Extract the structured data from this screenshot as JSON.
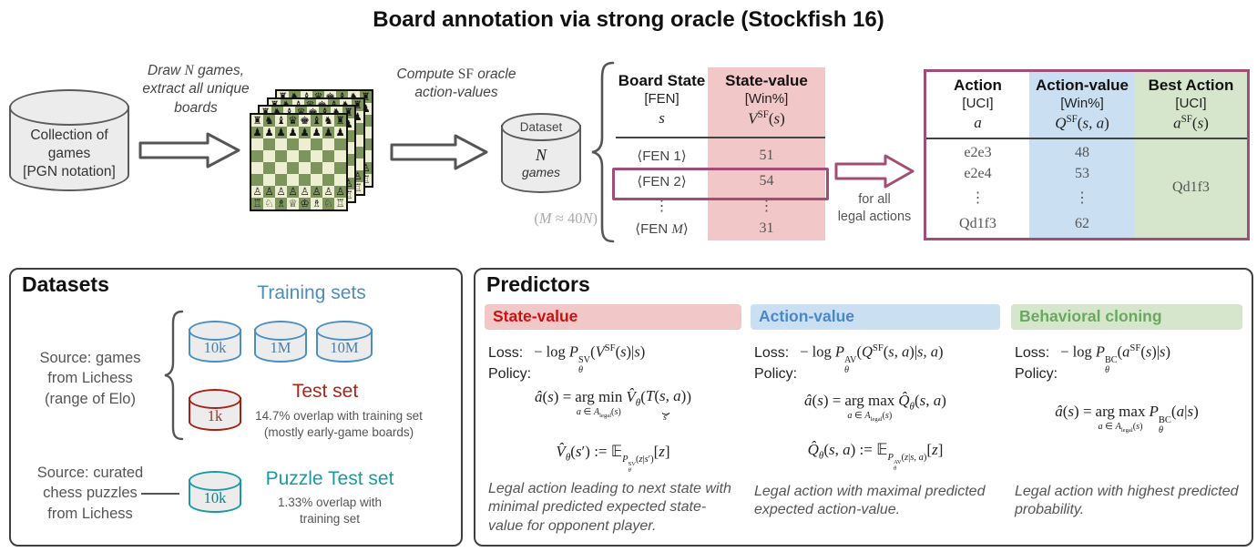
{
  "title": "Board annotation via strong oracle (Stockfish 16)",
  "colors": {
    "purple": "#a34d76",
    "pink_bg": "#f2c7c7",
    "blue_bg": "#cbdff2",
    "green_bg": "#d5e6cc",
    "red_text": "#cc1111",
    "blue_text": "#4a86c8",
    "green_text": "#6aa85f",
    "training_blue": "#4a8ec2",
    "test_red": "#b02418",
    "puzzle_teal": "#1b9aa5"
  },
  "flow": {
    "source_db": [
      "Collection of",
      "games",
      "[PGN notation]"
    ],
    "draw_label_html": "Draw <span class=\"mi\">N</span> games,<br>extract all unique<br>boards",
    "compute_label_html": "Compute <span class=\"mrm\">SF</span> oracle<br>action-values",
    "dataset_db": {
      "top": "Dataset",
      "n_html": "<span class=\"mi\">N</span>",
      "games": "games"
    },
    "m_note_html": "(<span class=\"mi\">M</span> ≈ 40<span class=\"mi\">N</span>)",
    "for_all_label": [
      "for all",
      "legal actions"
    ]
  },
  "board": {
    "rows": [
      "♜♞♝♛♚♝♞♜",
      "♟♟♟♟♟♟♟♟",
      "........",
      "........",
      "........",
      "........",
      "♙♙♙♙♙♙♙♙",
      "♖♘♗♕♔♗♘♖"
    ]
  },
  "state_table": {
    "col1": {
      "title": "Board State",
      "unit": "[FEN]",
      "symbol_html": "<span class=\"mi\">s</span>"
    },
    "col2": {
      "title": "State-value",
      "unit": "[Win%]",
      "symbol_html": "<span class=\"mi\">V</span><sup class=\"mrm\">SF</sup>(<span class=\"mi\">s</span>)"
    },
    "rows": [
      [
        "⟨FEN 1⟩",
        "51"
      ],
      [
        "⟨FEN 2⟩",
        "54"
      ],
      [
        "⋮",
        "⋮"
      ],
      [
        "⟨FEN <span class=\"mi\">M</span>⟩",
        "31"
      ]
    ]
  },
  "action_table": {
    "col1": {
      "title": "Action",
      "unit": "[UCI]",
      "symbol_html": "<span class=\"mi\">a</span>"
    },
    "col2": {
      "title": "Action-value",
      "unit": "[Win%]",
      "symbol_html": "<span class=\"mi\">Q</span><sup class=\"mrm\">SF</sup>(<span class=\"mi\">s</span>, <span class=\"mi\">a</span>)"
    },
    "col3": {
      "title": "Best Action",
      "unit": "[UCI]",
      "symbol_html": "<span class=\"mi\">a</span><sup class=\"mrm\">SF</sup>(<span class=\"mi\">s</span>)"
    },
    "rows": [
      [
        "e2e3",
        "48"
      ],
      [
        "e2e4",
        "53"
      ],
      [
        "⋮",
        "⋮"
      ],
      [
        "Qd1f3",
        "62"
      ]
    ],
    "best_action": "Qd1f3"
  },
  "datasets": {
    "title": "Datasets",
    "training_label": "Training sets",
    "training_cylinders": [
      "10k",
      "1M",
      "10M"
    ],
    "source_games": [
      "Source: games",
      "from Lichess",
      "(range of Elo)"
    ],
    "test_label": "Test set",
    "test_cylinder": "1k",
    "test_notes": [
      "14.7% overlap with training set",
      "(mostly early-game boards)"
    ],
    "source_puzzles": [
      "Source: curated",
      "chess puzzles",
      "from Lichess"
    ],
    "puzzle_label": "Puzzle Test set",
    "puzzle_cylinder": "10k",
    "puzzle_notes": [
      "1.33% overlap with",
      "training set"
    ]
  },
  "predictors": {
    "title": "Predictors",
    "loss_label": "Loss:",
    "policy_label": "Policy:",
    "columns": [
      {
        "name": "State-value",
        "loss_html": "<span class=\"mrm\">− log</span>&nbsp;<span class=\"mi\">P</span><span class=\"ss\"><span class=\"sst\">SV</span><span class=\"ssb\">θ</span></span>(<span class=\"mi\">V</span><sup class=\"mrm\">SF</sup>(<span class=\"mi\">s</span>)|<span class=\"mi\">s</span>)",
        "policy_lines_html": [
          "<span class=\"mi\">â</span>(<span class=\"mi\">s</span>) <span class=\"mrm\">=</span><span class=\"amstack\"><span class=\"amtop\">arg min</span><span class=\"ambot\"><span class=\"mi\">a</span> ∈ <span class=\"mi\">A</span><sub class=\"mrm\">legal</sub>(<span class=\"mi\">s</span>)</span></span><span class=\"mi\">V̂</span><sub class=\"ssb\">θ</sub>(<span class=\"ubstack\"><span><span class=\"mi\">T</span>(<span class=\"mi\">s</span>, <span class=\"mi\">a</span>)</span><span class=\"ubrace\">⏟</span><span class=\"ublab\"><span class=\"mi\">s</span>′</span></span>)",
          "<span class=\"mi\">V̂</span><sub class=\"ssb\">θ</sub>(<span class=\"mi\">s</span>′) <span class=\"mrm\">:=</span> <span class=\"bb\">𝔼</span><sub class=\"esub\"><span class=\"mi\">P</span><span class=\"ss\"><span class=\"sst\">SV</span><span class=\"ssb\">θ</span></span>(<span class=\"mi\">z</span>|<span class=\"mi\">s</span>′)</sub>[<span class=\"mi\">z</span>]"
        ],
        "description": "Legal action leading to next state with minimal predicted expected state-value for opponent player."
      },
      {
        "name": "Action-value",
        "loss_html": "<span class=\"mrm\">− log</span>&nbsp;<span class=\"mi\">P</span><span class=\"ss\"><span class=\"sst\">AV</span><span class=\"ssb\">θ</span></span>(<span class=\"mi\">Q</span><sup class=\"mrm\">SF</sup>(<span class=\"mi\">s</span>, <span class=\"mi\">a</span>)|<span class=\"mi\">s</span>, <span class=\"mi\">a</span>)",
        "policy_lines_html": [
          "<span class=\"mi\">â</span>(<span class=\"mi\">s</span>) <span class=\"mrm\">=</span><span class=\"amstack\"><span class=\"amtop\">arg max</span><span class=\"ambot\"><span class=\"mi\">a</span> ∈ <span class=\"mi\">A</span><sub class=\"mrm\">legal</sub>(<span class=\"mi\">s</span>)</span></span><span class=\"mi\">Q̂</span><sub class=\"ssb\">θ</sub>(<span class=\"mi\">s</span>, <span class=\"mi\">a</span>)",
          "<span class=\"mi\">Q̂</span><sub class=\"ssb\">θ</sub>(<span class=\"mi\">s</span>, <span class=\"mi\">a</span>) <span class=\"mrm\">:=</span> <span class=\"bb\">𝔼</span><sub class=\"esub\"><span class=\"mi\">P</span><span class=\"ss\"><span class=\"sst\">AV</span><span class=\"ssb\">θ</span></span>(<span class=\"mi\">z</span>|<span class=\"mi\">s</span>, <span class=\"mi\">a</span>)</sub>[<span class=\"mi\">z</span>]"
        ],
        "description": "Legal action with maximal predicted expected action-value."
      },
      {
        "name": "Behavioral cloning",
        "loss_html": "<span class=\"mrm\">− log</span>&nbsp;<span class=\"mi\">P</span><span class=\"ss\"><span class=\"sst\">BC</span><span class=\"ssb\">θ</span></span>(<span class=\"mi\">a</span><sup class=\"mrm\">SF</sup>(<span class=\"mi\">s</span>)|<span class=\"mi\">s</span>)",
        "policy_lines_html": [
          "<span class=\"mi\">â</span>(<span class=\"mi\">s</span>) <span class=\"mrm\">=</span><span class=\"amstack\"><span class=\"amtop\">arg max</span><span class=\"ambot\"><span class=\"mi\">a</span> ∈ <span class=\"mi\">A</span><sub class=\"mrm\">legal</sub>(<span class=\"mi\">s</span>)</span></span><span class=\"mi\">P</span><span class=\"ss\"><span class=\"sst\">BC</span><span class=\"ssb\">θ</span></span>(<span class=\"mi\">a</span>|<span class=\"mi\">s</span>)"
        ],
        "description": "Legal action with highest predicted probability."
      }
    ]
  }
}
